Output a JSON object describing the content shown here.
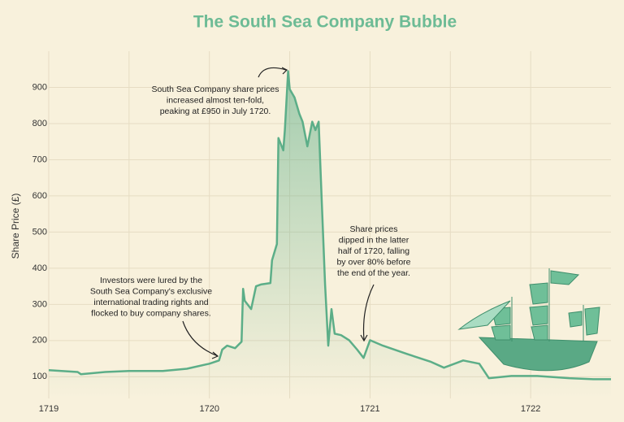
{
  "chart_data": {
    "type": "line",
    "title": "The South Sea Company Bubble",
    "y_label": "Share Price (£)",
    "x": [
      1719.0,
      1719.18,
      1719.2,
      1719.35,
      1719.5,
      1719.71,
      1719.86,
      1720.0,
      1720.06,
      1720.08,
      1720.11,
      1720.16,
      1720.2,
      1720.21,
      1720.22,
      1720.26,
      1720.29,
      1720.32,
      1720.38,
      1720.39,
      1720.42,
      1720.43,
      1720.46,
      1720.47,
      1720.49,
      1720.5,
      1720.53,
      1720.56,
      1720.58,
      1720.61,
      1720.64,
      1720.66,
      1720.68,
      1720.7,
      1720.72,
      1720.74,
      1720.76,
      1720.78,
      1720.82,
      1720.87,
      1720.92,
      1720.96,
      1721.0,
      1721.08,
      1721.23,
      1721.38,
      1721.46,
      1721.58,
      1721.68,
      1721.74,
      1721.88,
      1722.04,
      1722.24,
      1722.39,
      1722.5
    ],
    "series": [
      {
        "name": "Share price",
        "color": "#5cae88",
        "values": [
          118,
          113,
          107,
          113,
          116,
          116,
          122,
          136,
          145,
          175,
          186,
          179,
          197,
          343,
          310,
          287,
          350,
          355,
          359,
          422,
          467,
          760,
          726,
          782,
          945,
          895,
          872,
          827,
          805,
          737,
          805,
          782,
          805,
          580,
          355,
          186,
          287,
          219,
          215,
          201,
          175,
          152,
          201,
          186,
          163,
          141,
          125,
          145,
          136,
          96,
          102,
          102,
          96,
          93,
          93
        ]
      }
    ],
    "xlim": [
      1719,
      1722.5
    ],
    "xticks": [
      1719,
      1720,
      1721,
      1722
    ],
    "x_minor_grid": [
      1719.5,
      1720.5,
      1721.5
    ],
    "ylim": [
      40,
      1000
    ],
    "yticks": [
      100,
      200,
      300,
      400,
      500,
      600,
      700,
      800,
      900
    ],
    "grid": true,
    "annotations": [
      [
        "South Sea Company share prices",
        "increased almost ten-fold,",
        "peaking at £950 in July 1720."
      ],
      [
        "Investors were lured by the",
        "South Sea Company's exclusive",
        "international trading rights and",
        "flocked to buy company shares."
      ],
      [
        "Share prices",
        "dipped in the latter",
        "half of 1720, falling",
        "by over 80% before",
        "the end of the year."
      ]
    ]
  }
}
